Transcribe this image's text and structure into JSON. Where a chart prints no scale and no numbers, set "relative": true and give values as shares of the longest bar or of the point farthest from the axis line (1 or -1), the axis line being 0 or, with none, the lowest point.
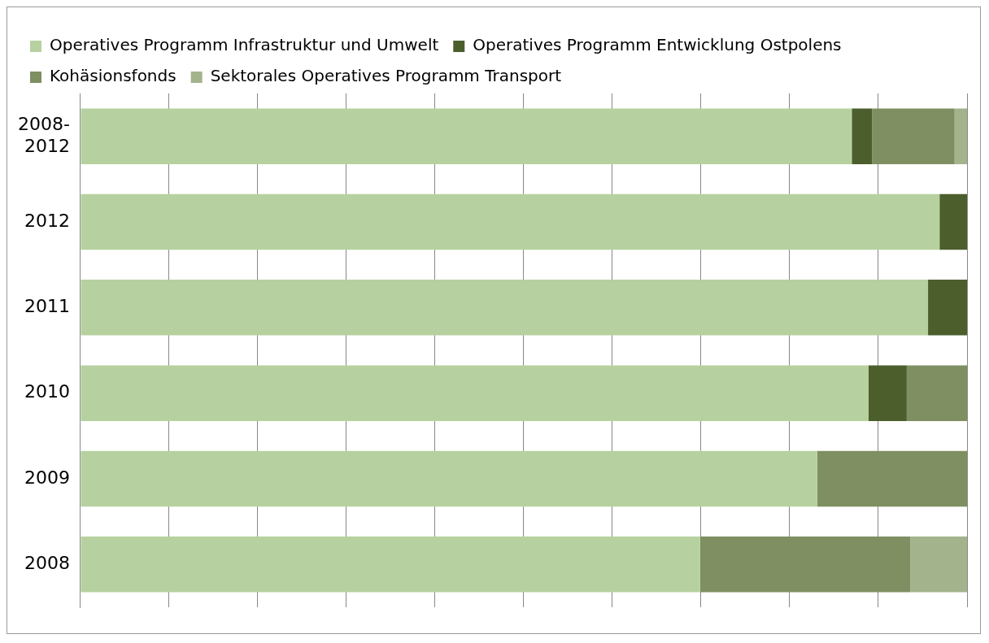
{
  "chart_data": {
    "type": "bar",
    "orientation": "horizontal",
    "stacked": true,
    "relative": true,
    "grid": "x",
    "legend": "top",
    "categories": [
      "2008-2012",
      "2012",
      "2011",
      "2010",
      "2009",
      "2008"
    ],
    "series": [
      {
        "name": "Operatives Programm Infrastruktur und Umwelt",
        "color": "#b6d19f",
        "values": [
          0.87,
          0.969,
          0.956,
          0.889,
          0.831,
          0.699
        ]
      },
      {
        "name": "Operatives Programm Entwicklung Ostpolens",
        "color": "#4b5e2c",
        "values": [
          0.023,
          0.031,
          0.044,
          0.043,
          null,
          null
        ]
      },
      {
        "name": "Kohäsionsfonds",
        "color": "#7f8f62",
        "values": [
          0.093,
          null,
          null,
          0.068,
          0.169,
          0.237
        ]
      },
      {
        "name": "Sektorales Operatives Programm Transport",
        "color": "#a3b48c",
        "values": [
          0.014,
          null,
          null,
          null,
          null,
          0.064
        ]
      }
    ]
  }
}
